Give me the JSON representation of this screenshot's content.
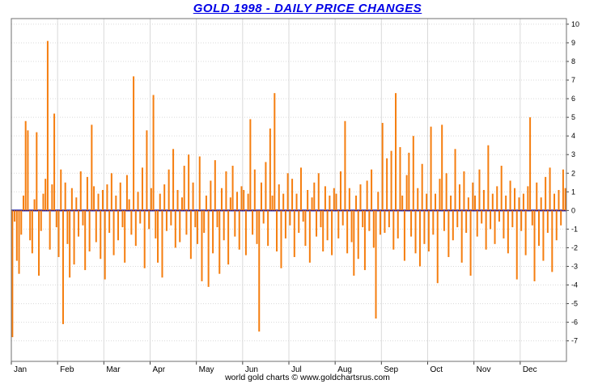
{
  "footer": {
    "text": "world gold charts © www.goldchartsrus.com"
  },
  "colors": {
    "bar": "#f57e0f",
    "zero_line": "#000099",
    "title": "#0000e6",
    "grid_h": "#d9d9d9",
    "grid_v": "#d9d9d9",
    "border": "#6f6f6f",
    "tick": "#444444",
    "axis_text": "#000000"
  },
  "chart_data": {
    "type": "bar",
    "title": "GOLD 1998 - DAILY PRICE CHANGES",
    "xlabel": "",
    "ylabel": "",
    "x_tick_labels": [
      "Jan",
      "Feb",
      "Mar",
      "Apr",
      "May",
      "Jun",
      "Jul",
      "Aug",
      "Sep",
      "Oct",
      "Nov",
      "Dec"
    ],
    "y_ticks": [
      10,
      9,
      8,
      7,
      6,
      5,
      4,
      3,
      2,
      1,
      0,
      -1,
      -2,
      -3,
      -4,
      -5,
      -6,
      -7
    ],
    "ylim": [
      -8.1,
      10.3
    ],
    "grid": true,
    "legend": "none",
    "days_per_month": 21,
    "series_name": "daily price change",
    "values": [
      -6.8,
      -0.6,
      -2.7,
      -3.4,
      -1.3,
      0.8,
      4.8,
      4.3,
      -1.6,
      -2.3,
      0.6,
      4.2,
      -3.5,
      -1.1,
      0.9,
      1.7,
      9.1,
      -2.1,
      1.4,
      5.2,
      -0.9,
      -2.5,
      2.2,
      -6.1,
      1.5,
      -1.8,
      -3.6,
      1.2,
      -2.9,
      0.7,
      -1.4,
      2.1,
      -0.8,
      -3.2,
      1.8,
      -2.2,
      4.6,
      1.3,
      -1.7,
      0.9,
      -2.6,
      1.1,
      -3.7,
      1.4,
      -1.2,
      2.0,
      -2.4,
      0.8,
      -1.6,
      1.5,
      -0.9,
      -2.8,
      1.9,
      0.6,
      -1.3,
      7.2,
      -1.9,
      1.0,
      -0.7,
      2.3,
      -3.1,
      4.3,
      -1.0,
      1.2,
      6.2,
      -1.5,
      -2.8,
      0.9,
      -3.6,
      1.4,
      -1.1,
      2.2,
      -0.8,
      3.3,
      -2.0,
      1.1,
      -1.7,
      0.7,
      2.4,
      -1.3,
      3.0,
      -2.6,
      1.5,
      -0.9,
      -1.8,
      2.9,
      -3.8,
      -1.2,
      0.8,
      -4.1,
      1.6,
      -2.3,
      2.7,
      -0.9,
      -3.4,
      1.2,
      -1.6,
      2.1,
      -2.9,
      0.7,
      2.4,
      -1.4,
      1.0,
      -2.1,
      1.3,
      1.1,
      -2.4,
      0.9,
      4.9,
      -1.3,
      2.2,
      -1.8,
      -6.5,
      1.5,
      -0.7,
      2.6,
      -1.9,
      4.4,
      0.8,
      6.3,
      -2.2,
      1.4,
      -3.1,
      0.9,
      -1.5,
      2.0,
      -0.8,
      1.7,
      -2.5,
      0.9,
      -1.2,
      2.3,
      -0.6,
      -1.9,
      1.1,
      -2.8,
      0.7,
      1.5,
      -1.4,
      2.0,
      -0.9,
      -2.2,
      1.3,
      -1.6,
      0.8,
      -2.4,
      1.2,
      0.9,
      -1.5,
      2.1,
      -0.8,
      4.8,
      -2.3,
      1.2,
      -1.7,
      -3.5,
      0.8,
      -2.6,
      1.4,
      -0.9,
      -3.2,
      1.6,
      -1.1,
      2.2,
      -2.0,
      -5.8,
      1.0,
      -1.3,
      4.7,
      -1.2,
      2.8,
      -0.9,
      3.2,
      -2.1,
      6.3,
      -1.5,
      3.4,
      0.8,
      -2.7,
      1.9,
      3.1,
      -1.4,
      4.0,
      -2.3,
      1.2,
      -3.0,
      2.5,
      -1.8,
      0.9,
      -2.2,
      4.5,
      -1.3,
      0.9,
      -3.9,
      1.7,
      4.6,
      -1.1,
      2.0,
      -2.5,
      0.8,
      -1.6,
      3.3,
      -0.9,
      1.4,
      -2.8,
      2.1,
      -1.2,
      0.7,
      -3.5,
      1.5,
      0.8,
      -1.4,
      2.2,
      -0.7,
      1.1,
      -2.1,
      3.5,
      -1.0,
      0.9,
      -1.8,
      1.3,
      -0.6,
      2.4,
      -1.5,
      0.8,
      -2.3,
      1.6,
      -0.9,
      1.2,
      -3.7,
      0.7,
      -1.1,
      0.9,
      -2.4,
      1.3,
      5.0,
      -0.8,
      -3.8,
      1.5,
      -1.9,
      0.7,
      -2.7,
      1.8,
      -1.2,
      2.3,
      -3.3,
      0.9,
      -1.6,
      1.1,
      -0.8,
      2.2,
      1.2
    ]
  }
}
